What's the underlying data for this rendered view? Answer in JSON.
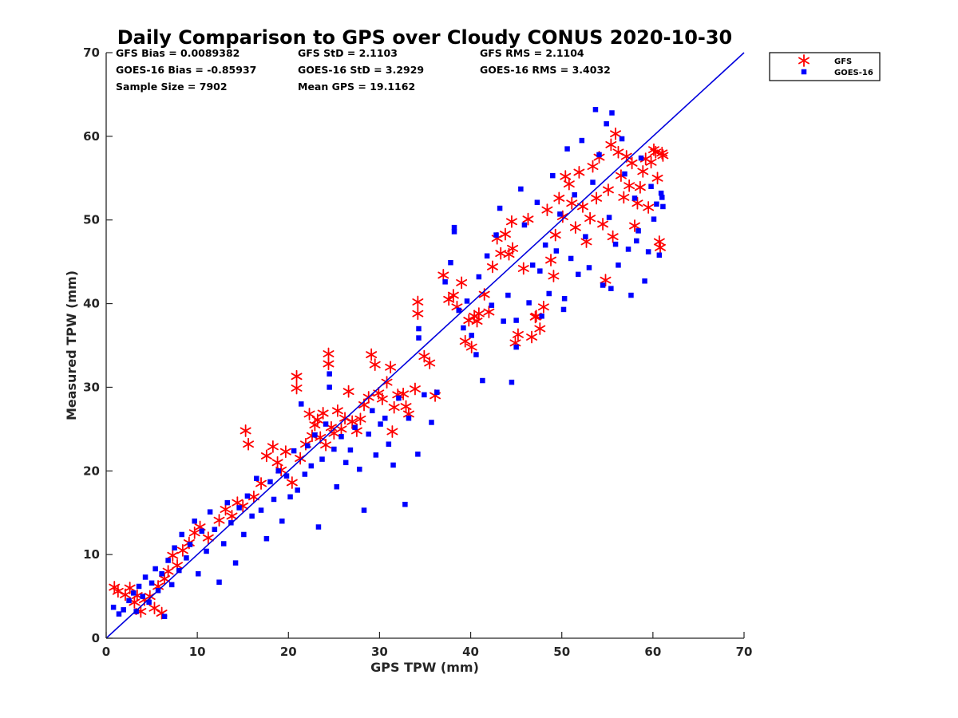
{
  "chart_data": {
    "type": "scatter",
    "title": "Daily Comparison to GPS over Cloudy CONUS 2020-10-30",
    "xlabel": "GPS TPW (mm)",
    "ylabel": "Measured TPW (mm)",
    "xlim": [
      0,
      70
    ],
    "ylim": [
      0,
      70
    ],
    "xticks": [
      "0",
      "10",
      "20",
      "30",
      "40",
      "50",
      "60",
      "70"
    ],
    "yticks": [
      "0",
      "10",
      "20",
      "30",
      "40",
      "50",
      "60",
      "70"
    ],
    "grid": false,
    "legend_position": "outside-top-right",
    "stats": [
      "GFS Bias = 0.0089382",
      "GFS StD = 2.1103",
      "GFS RMS = 2.1104",
      "GOES-16 Bias = -0.85937",
      "GOES-16 StD = 3.2929",
      "GOES-16 RMS = 3.4032",
      "Sample Size = 7902",
      "Mean GPS = 19.1162"
    ],
    "reference_line": {
      "type": "one-to-one",
      "x": [
        0,
        70
      ],
      "y": [
        0,
        70
      ],
      "color": "#0000dd"
    },
    "series": [
      {
        "name": "GFS",
        "marker": "asterisk",
        "color": "#ff0000",
        "points": [
          [
            0.9,
            6.1
          ],
          [
            1.3,
            5.6
          ],
          [
            2.1,
            5.2
          ],
          [
            2.6,
            6.0
          ],
          [
            3.1,
            4.3
          ],
          [
            3.4,
            5.1
          ],
          [
            3.8,
            3.2
          ],
          [
            4.2,
            4.6
          ],
          [
            4.8,
            5.0
          ],
          [
            5.3,
            3.6
          ],
          [
            5.7,
            6.2
          ],
          [
            6.1,
            3.0
          ],
          [
            6.4,
            7.1
          ],
          [
            6.8,
            8.0
          ],
          [
            7.3,
            9.9
          ],
          [
            7.8,
            8.7
          ],
          [
            8.4,
            10.5
          ],
          [
            9.1,
            11.4
          ],
          [
            9.7,
            12.6
          ],
          [
            10.3,
            13.3
          ],
          [
            11.2,
            12.0
          ],
          [
            12.4,
            14.1
          ],
          [
            13.1,
            15.4
          ],
          [
            13.8,
            14.6
          ],
          [
            14.4,
            16.2
          ],
          [
            15.0,
            15.8
          ],
          [
            15.3,
            24.8
          ],
          [
            15.6,
            23.2
          ],
          [
            16.2,
            16.9
          ],
          [
            17.0,
            18.5
          ],
          [
            17.6,
            21.8
          ],
          [
            18.3,
            22.9
          ],
          [
            18.8,
            21.0
          ],
          [
            19.2,
            20.1
          ],
          [
            19.7,
            22.3
          ],
          [
            20.4,
            18.6
          ],
          [
            20.9,
            31.3
          ],
          [
            20.9,
            29.9
          ],
          [
            21.3,
            21.5
          ],
          [
            21.9,
            23.2
          ],
          [
            22.3,
            26.8
          ],
          [
            22.6,
            24.2
          ],
          [
            22.9,
            25.5
          ],
          [
            23.2,
            26.1
          ],
          [
            23.5,
            24.0
          ],
          [
            23.8,
            26.9
          ],
          [
            24.1,
            23.1
          ],
          [
            24.4,
            34.0
          ],
          [
            24.4,
            32.8
          ],
          [
            24.7,
            25.2
          ],
          [
            25.0,
            24.5
          ],
          [
            25.4,
            27.2
          ],
          [
            25.8,
            25.0
          ],
          [
            26.2,
            26.3
          ],
          [
            26.6,
            29.5
          ],
          [
            27.0,
            25.9
          ],
          [
            27.5,
            24.8
          ],
          [
            27.9,
            26.2
          ],
          [
            28.3,
            27.9
          ],
          [
            28.8,
            28.8
          ],
          [
            29.1,
            33.9
          ],
          [
            29.5,
            32.7
          ],
          [
            29.9,
            29.3
          ],
          [
            30.3,
            28.6
          ],
          [
            30.8,
            30.6
          ],
          [
            31.2,
            32.4
          ],
          [
            31.4,
            24.7
          ],
          [
            31.6,
            27.6
          ],
          [
            32.0,
            29.1
          ],
          [
            32.6,
            29.2
          ],
          [
            32.9,
            27.7
          ],
          [
            33.2,
            26.8
          ],
          [
            33.9,
            29.8
          ],
          [
            34.2,
            40.2
          ],
          [
            34.2,
            38.8
          ],
          [
            34.9,
            33.7
          ],
          [
            35.5,
            32.9
          ],
          [
            36.1,
            29.0
          ],
          [
            37.0,
            43.4
          ],
          [
            37.6,
            40.5
          ],
          [
            38.1,
            41.0
          ],
          [
            38.5,
            39.6
          ],
          [
            39.0,
            42.5
          ],
          [
            39.4,
            35.5
          ],
          [
            39.8,
            38.0
          ],
          [
            40.1,
            34.8
          ],
          [
            40.4,
            38.5
          ],
          [
            40.7,
            37.9
          ],
          [
            40.9,
            38.8
          ],
          [
            41.5,
            41.1
          ],
          [
            42.0,
            39.0
          ],
          [
            42.4,
            44.4
          ],
          [
            42.9,
            47.8
          ],
          [
            43.3,
            46.0
          ],
          [
            43.8,
            48.3
          ],
          [
            44.2,
            45.9
          ],
          [
            44.5,
            49.8
          ],
          [
            44.9,
            35.3
          ],
          [
            45.2,
            36.3
          ],
          [
            45.8,
            44.2
          ],
          [
            46.3,
            50.1
          ],
          [
            46.7,
            36.0
          ],
          [
            47.1,
            38.4
          ],
          [
            47.6,
            37.0
          ],
          [
            48.0,
            39.6
          ],
          [
            48.4,
            51.2
          ],
          [
            48.8,
            45.2
          ],
          [
            49.1,
            43.3
          ],
          [
            49.3,
            48.2
          ],
          [
            49.7,
            52.6
          ],
          [
            50.1,
            50.4
          ],
          [
            50.4,
            55.2
          ],
          [
            50.8,
            54.3
          ],
          [
            51.1,
            52.0
          ],
          [
            51.5,
            49.1
          ],
          [
            51.9,
            55.7
          ],
          [
            52.3,
            51.6
          ],
          [
            52.7,
            47.4
          ],
          [
            53.1,
            50.2
          ],
          [
            53.4,
            56.4
          ],
          [
            53.8,
            52.6
          ],
          [
            54.1,
            57.5
          ],
          [
            54.5,
            49.5
          ],
          [
            54.8,
            42.8
          ],
          [
            55.1,
            53.6
          ],
          [
            55.4,
            59.0
          ],
          [
            55.6,
            48.0
          ],
          [
            55.9,
            60.3
          ],
          [
            56.2,
            58.1
          ],
          [
            56.5,
            55.3
          ],
          [
            56.8,
            52.7
          ],
          [
            57.1,
            57.6
          ],
          [
            57.4,
            54.1
          ],
          [
            57.7,
            56.8
          ],
          [
            58.0,
            49.3
          ],
          [
            58.3,
            52.0
          ],
          [
            58.6,
            53.9
          ],
          [
            58.9,
            55.8
          ],
          [
            59.2,
            57.3
          ],
          [
            59.5,
            51.5
          ],
          [
            59.8,
            56.9
          ],
          [
            60.1,
            58.4
          ],
          [
            60.3,
            58.1
          ],
          [
            60.5,
            55.0
          ],
          [
            60.7,
            47.4
          ],
          [
            60.8,
            46.7
          ],
          [
            61.0,
            58.0
          ],
          [
            61.1,
            57.7
          ],
          [
            44.6,
            46.6
          ],
          [
            47.2,
            38.5
          ]
        ]
      },
      {
        "name": "GOES-16",
        "marker": "square",
        "color": "#0000ff",
        "points": [
          [
            0.8,
            3.7
          ],
          [
            1.4,
            2.9
          ],
          [
            1.9,
            3.4
          ],
          [
            2.5,
            4.5
          ],
          [
            3.0,
            5.4
          ],
          [
            3.3,
            3.2
          ],
          [
            3.6,
            6.2
          ],
          [
            4.0,
            5.0
          ],
          [
            4.3,
            7.3
          ],
          [
            4.7,
            4.3
          ],
          [
            5.0,
            6.6
          ],
          [
            5.4,
            8.3
          ],
          [
            5.7,
            5.7
          ],
          [
            6.1,
            7.7
          ],
          [
            6.4,
            2.6
          ],
          [
            6.8,
            9.3
          ],
          [
            7.2,
            6.4
          ],
          [
            7.5,
            10.8
          ],
          [
            8.0,
            8.1
          ],
          [
            8.3,
            12.4
          ],
          [
            8.8,
            9.6
          ],
          [
            9.2,
            11.2
          ],
          [
            9.7,
            14.0
          ],
          [
            10.1,
            7.7
          ],
          [
            10.5,
            12.8
          ],
          [
            11.0,
            10.4
          ],
          [
            11.4,
            15.1
          ],
          [
            11.9,
            13.0
          ],
          [
            12.4,
            6.7
          ],
          [
            12.9,
            11.3
          ],
          [
            13.3,
            16.2
          ],
          [
            13.7,
            13.8
          ],
          [
            14.2,
            9.0
          ],
          [
            14.6,
            15.6
          ],
          [
            15.1,
            12.4
          ],
          [
            15.5,
            17.0
          ],
          [
            16.0,
            14.6
          ],
          [
            16.5,
            19.1
          ],
          [
            17.0,
            15.3
          ],
          [
            17.6,
            11.9
          ],
          [
            18.0,
            18.7
          ],
          [
            18.4,
            16.6
          ],
          [
            18.9,
            20.0
          ],
          [
            19.3,
            14.0
          ],
          [
            19.8,
            19.4
          ],
          [
            20.2,
            16.9
          ],
          [
            20.6,
            22.4
          ],
          [
            21.0,
            17.7
          ],
          [
            21.4,
            28.0
          ],
          [
            21.8,
            19.6
          ],
          [
            22.1,
            23.0
          ],
          [
            22.5,
            20.6
          ],
          [
            22.9,
            24.3
          ],
          [
            23.3,
            13.3
          ],
          [
            23.7,
            21.4
          ],
          [
            24.1,
            25.6
          ],
          [
            24.5,
            31.6
          ],
          [
            24.5,
            30.0
          ],
          [
            25.0,
            22.6
          ],
          [
            25.3,
            18.1
          ],
          [
            25.8,
            24.1
          ],
          [
            26.3,
            21.0
          ],
          [
            26.8,
            22.5
          ],
          [
            27.3,
            25.2
          ],
          [
            27.8,
            20.2
          ],
          [
            28.3,
            15.3
          ],
          [
            28.8,
            24.4
          ],
          [
            29.2,
            27.2
          ],
          [
            29.6,
            21.9
          ],
          [
            30.1,
            25.6
          ],
          [
            30.6,
            26.3
          ],
          [
            31.0,
            23.2
          ],
          [
            31.5,
            20.7
          ],
          [
            32.1,
            28.7
          ],
          [
            32.8,
            16.0
          ],
          [
            33.2,
            26.3
          ],
          [
            34.2,
            22.0
          ],
          [
            34.3,
            37.0
          ],
          [
            34.3,
            35.9
          ],
          [
            34.9,
            29.1
          ],
          [
            35.7,
            25.8
          ],
          [
            36.3,
            29.4
          ],
          [
            37.2,
            42.6
          ],
          [
            37.8,
            44.9
          ],
          [
            38.2,
            48.6
          ],
          [
            38.2,
            49.1
          ],
          [
            38.7,
            39.2
          ],
          [
            39.2,
            37.1
          ],
          [
            39.6,
            40.3
          ],
          [
            40.1,
            36.2
          ],
          [
            40.6,
            33.9
          ],
          [
            40.9,
            43.2
          ],
          [
            41.3,
            30.8
          ],
          [
            41.8,
            45.7
          ],
          [
            42.3,
            39.8
          ],
          [
            42.8,
            48.2
          ],
          [
            43.2,
            51.4
          ],
          [
            43.6,
            37.9
          ],
          [
            44.1,
            41.0
          ],
          [
            44.5,
            30.6
          ],
          [
            45.0,
            34.8
          ],
          [
            45.5,
            53.7
          ],
          [
            45.9,
            49.4
          ],
          [
            46.4,
            40.1
          ],
          [
            46.8,
            44.6
          ],
          [
            47.3,
            52.1
          ],
          [
            47.8,
            38.5
          ],
          [
            48.2,
            47.0
          ],
          [
            48.6,
            41.2
          ],
          [
            49.0,
            55.3
          ],
          [
            49.4,
            46.3
          ],
          [
            49.8,
            50.7
          ],
          [
            50.2,
            39.3
          ],
          [
            50.6,
            58.5
          ],
          [
            51.0,
            45.4
          ],
          [
            51.4,
            53.0
          ],
          [
            51.8,
            43.5
          ],
          [
            52.2,
            59.5
          ],
          [
            52.6,
            48.0
          ],
          [
            53.0,
            44.3
          ],
          [
            53.4,
            54.5
          ],
          [
            53.7,
            63.2
          ],
          [
            54.1,
            57.8
          ],
          [
            54.5,
            42.2
          ],
          [
            54.9,
            61.5
          ],
          [
            55.2,
            50.3
          ],
          [
            55.5,
            62.8
          ],
          [
            55.9,
            47.1
          ],
          [
            56.2,
            44.6
          ],
          [
            56.6,
            59.7
          ],
          [
            56.9,
            55.5
          ],
          [
            57.3,
            46.5
          ],
          [
            57.6,
            41.0
          ],
          [
            58.0,
            52.6
          ],
          [
            58.4,
            48.7
          ],
          [
            58.7,
            57.4
          ],
          [
            59.1,
            42.7
          ],
          [
            59.5,
            46.2
          ],
          [
            59.8,
            54.0
          ],
          [
            60.1,
            50.1
          ],
          [
            60.4,
            51.9
          ],
          [
            60.7,
            45.8
          ],
          [
            61.0,
            52.7
          ],
          [
            61.1,
            51.6
          ],
          [
            45.0,
            38.0
          ],
          [
            47.6,
            43.9
          ],
          [
            50.3,
            40.6
          ],
          [
            55.4,
            41.8
          ],
          [
            58.2,
            47.5
          ],
          [
            60.9,
            53.2
          ]
        ]
      }
    ]
  }
}
